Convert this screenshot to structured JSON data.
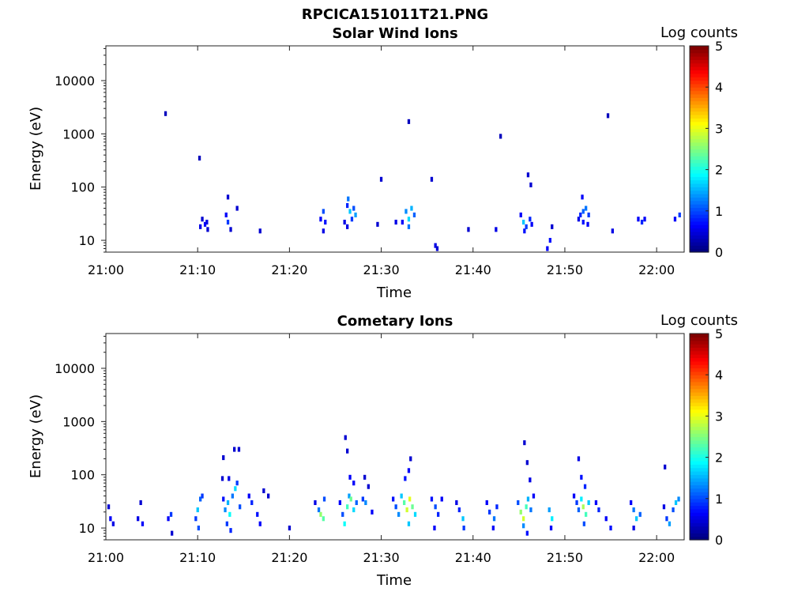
{
  "figure_title": "RPCICA151011T21.PNG",
  "chart_data": [
    {
      "type": "heatmap",
      "title": "Solar Wind Ions",
      "xlabel": "Time",
      "ylabel": "Energy (eV)",
      "x_tick_labels": [
        "21:00",
        "21:10",
        "21:20",
        "21:30",
        "21:40",
        "21:50",
        "22:00"
      ],
      "x_range_minutes": [
        0,
        63
      ],
      "y_scale": "log",
      "y_range": [
        6,
        45000
      ],
      "y_ticks": [
        10,
        100,
        1000,
        10000
      ],
      "y_tick_labels": [
        "10",
        "100",
        "1000",
        "10000"
      ],
      "colorbar": {
        "label": "Log counts",
        "range": [
          0,
          5
        ],
        "ticks": [
          "0",
          "1",
          "2",
          "3",
          "4",
          "5"
        ]
      },
      "cells": [
        [
          6.5,
          2400,
          0.3
        ],
        [
          10.2,
          350,
          0.3
        ],
        [
          13.3,
          65,
          0.4
        ],
        [
          14.3,
          40,
          0.4
        ],
        [
          33.0,
          1700,
          0.3
        ],
        [
          43.0,
          900,
          0.3
        ],
        [
          30.0,
          140,
          0.4
        ],
        [
          35.5,
          140,
          0.4
        ],
        [
          46.0,
          170,
          0.4
        ],
        [
          46.3,
          110,
          0.4
        ],
        [
          54.7,
          2200,
          0.3
        ],
        [
          51.9,
          65,
          0.6
        ],
        [
          10.5,
          25,
          0.4
        ],
        [
          10.8,
          20,
          0.6
        ],
        [
          11.0,
          22,
          0.5
        ],
        [
          10.3,
          18,
          0.5
        ],
        [
          11.1,
          16,
          0.4
        ],
        [
          13.1,
          30,
          0.6
        ],
        [
          13.3,
          22,
          0.9
        ],
        [
          13.6,
          16,
          0.4
        ],
        [
          16.8,
          15,
          0.4
        ],
        [
          23.4,
          25,
          0.6
        ],
        [
          23.7,
          35,
          1.0
        ],
        [
          23.9,
          22,
          0.7
        ],
        [
          23.7,
          15,
          0.5
        ],
        [
          26.0,
          22,
          0.5
        ],
        [
          26.3,
          45,
          0.8
        ],
        [
          26.4,
          60,
          1.2
        ],
        [
          26.6,
          35,
          1.6
        ],
        [
          26.8,
          25,
          0.9
        ],
        [
          27.0,
          40,
          1.0
        ],
        [
          27.2,
          30,
          1.4
        ],
        [
          26.3,
          18,
          0.5
        ],
        [
          29.6,
          20,
          0.4
        ],
        [
          31.6,
          22,
          0.5
        ],
        [
          32.3,
          22,
          0.6
        ],
        [
          32.7,
          35,
          1.3
        ],
        [
          33.0,
          25,
          1.7
        ],
        [
          33.3,
          40,
          1.5
        ],
        [
          33.6,
          30,
          1.1
        ],
        [
          33.0,
          18,
          1.2
        ],
        [
          35.9,
          8,
          0.5
        ],
        [
          36.1,
          7,
          0.4
        ],
        [
          39.5,
          16,
          0.4
        ],
        [
          42.5,
          16,
          0.5
        ],
        [
          45.2,
          30,
          0.6
        ],
        [
          45.5,
          22,
          1.6
        ],
        [
          45.8,
          18,
          0.9
        ],
        [
          46.2,
          25,
          0.8
        ],
        [
          46.4,
          20,
          0.6
        ],
        [
          45.6,
          15,
          0.7
        ],
        [
          48.1,
          7,
          0.6
        ],
        [
          48.4,
          10,
          0.7
        ],
        [
          48.6,
          18,
          0.4
        ],
        [
          51.5,
          25,
          0.5
        ],
        [
          51.7,
          30,
          0.8
        ],
        [
          52.0,
          35,
          1.1
        ],
        [
          52.3,
          40,
          1.2
        ],
        [
          52.6,
          30,
          0.9
        ],
        [
          52.0,
          22,
          0.7
        ],
        [
          52.5,
          20,
          0.6
        ],
        [
          55.2,
          15,
          0.5
        ],
        [
          58.0,
          25,
          0.6
        ],
        [
          58.4,
          22,
          0.8
        ],
        [
          58.7,
          25,
          0.6
        ],
        [
          62.0,
          25,
          0.6
        ],
        [
          62.5,
          30,
          0.9
        ]
      ]
    },
    {
      "type": "heatmap",
      "title": "Cometary Ions",
      "xlabel": "Time",
      "ylabel": "Energy (eV)",
      "x_tick_labels": [
        "21:00",
        "21:10",
        "21:20",
        "21:30",
        "21:40",
        "21:50",
        "22:00"
      ],
      "x_range_minutes": [
        0,
        63
      ],
      "y_scale": "log",
      "y_range": [
        6,
        45000
      ],
      "y_ticks": [
        10,
        100,
        1000,
        10000
      ],
      "y_tick_labels": [
        "10",
        "100",
        "1000",
        "10000"
      ],
      "colorbar": {
        "label": "Log counts",
        "range": [
          0,
          5
        ],
        "ticks": [
          "0",
          "1",
          "2",
          "3",
          "4",
          "5"
        ]
      },
      "cells": [
        [
          0.3,
          25,
          0.4
        ],
        [
          0.5,
          15,
          0.6
        ],
        [
          0.8,
          12,
          0.5
        ],
        [
          3.8,
          30,
          0.4
        ],
        [
          3.5,
          15,
          0.5
        ],
        [
          4.0,
          12,
          0.6
        ],
        [
          6.8,
          15,
          0.6
        ],
        [
          7.1,
          18,
          0.9
        ],
        [
          7.2,
          8,
          0.4
        ],
        [
          9.8,
          15,
          0.9
        ],
        [
          10.0,
          22,
          1.6
        ],
        [
          10.3,
          35,
          1.1
        ],
        [
          10.5,
          40,
          0.9
        ],
        [
          10.1,
          10,
          1.0
        ],
        [
          12.8,
          35,
          0.7
        ],
        [
          13.0,
          22,
          1.3
        ],
        [
          13.3,
          30,
          1.5
        ],
        [
          13.5,
          18,
          1.9
        ],
        [
          13.8,
          40,
          1.2
        ],
        [
          14.1,
          55,
          1.7
        ],
        [
          14.3,
          70,
          0.9
        ],
        [
          14.6,
          25,
          1.0
        ],
        [
          13.2,
          12,
          0.9
        ],
        [
          13.6,
          9,
          0.8
        ],
        [
          12.7,
          85,
          0.4
        ],
        [
          13.4,
          85,
          0.5
        ],
        [
          14.0,
          300,
          0.4
        ],
        [
          14.5,
          300,
          0.4
        ],
        [
          12.8,
          210,
          0.4
        ],
        [
          15.6,
          40,
          0.6
        ],
        [
          15.9,
          30,
          0.8
        ],
        [
          16.5,
          18,
          0.7
        ],
        [
          16.8,
          12,
          0.6
        ],
        [
          17.2,
          50,
          0.4
        ],
        [
          17.7,
          40,
          0.4
        ],
        [
          20.0,
          10,
          0.4
        ],
        [
          22.8,
          30,
          0.5
        ],
        [
          23.2,
          22,
          1.2
        ],
        [
          23.4,
          18,
          2.6
        ],
        [
          23.7,
          15,
          2.3
        ],
        [
          23.8,
          35,
          1.0
        ],
        [
          25.5,
          30,
          0.6
        ],
        [
          25.8,
          18,
          1.0
        ],
        [
          26.0,
          12,
          1.9
        ],
        [
          26.3,
          25,
          2.2
        ],
        [
          26.5,
          40,
          1.4
        ],
        [
          26.7,
          35,
          2.4
        ],
        [
          27.0,
          22,
          1.7
        ],
        [
          27.3,
          30,
          1.1
        ],
        [
          26.1,
          500,
          0.4
        ],
        [
          26.3,
          280,
          0.4
        ],
        [
          26.6,
          90,
          0.6
        ],
        [
          27.0,
          70,
          0.6
        ],
        [
          28.2,
          90,
          0.4
        ],
        [
          28.6,
          60,
          0.4
        ],
        [
          29.0,
          20,
          0.6
        ],
        [
          28.0,
          35,
          0.9
        ],
        [
          28.3,
          30,
          1.3
        ],
        [
          31.3,
          35,
          0.7
        ],
        [
          31.6,
          25,
          1.0
        ],
        [
          31.9,
          18,
          1.3
        ],
        [
          32.2,
          40,
          1.6
        ],
        [
          32.5,
          30,
          2.3
        ],
        [
          32.8,
          22,
          2.9
        ],
        [
          33.1,
          35,
          3.0
        ],
        [
          33.4,
          25,
          2.4
        ],
        [
          33.7,
          18,
          1.7
        ],
        [
          33.0,
          12,
          1.6
        ],
        [
          32.6,
          85,
          0.7
        ],
        [
          33.0,
          120,
          0.6
        ],
        [
          33.2,
          200,
          0.4
        ],
        [
          35.5,
          35,
          0.7
        ],
        [
          35.9,
          25,
          1.0
        ],
        [
          36.2,
          18,
          0.8
        ],
        [
          36.6,
          35,
          0.6
        ],
        [
          35.8,
          10,
          0.6
        ],
        [
          38.2,
          30,
          0.5
        ],
        [
          38.5,
          22,
          0.8
        ],
        [
          38.9,
          15,
          1.6
        ],
        [
          39.0,
          10,
          0.9
        ],
        [
          41.5,
          30,
          0.6
        ],
        [
          41.8,
          20,
          0.9
        ],
        [
          42.3,
          15,
          1.2
        ],
        [
          42.6,
          25,
          0.8
        ],
        [
          42.2,
          10,
          0.6
        ],
        [
          44.9,
          30,
          1.0
        ],
        [
          45.2,
          20,
          2.6
        ],
        [
          45.5,
          15,
          2.9
        ],
        [
          45.8,
          25,
          2.2
        ],
        [
          46.0,
          35,
          1.5
        ],
        [
          46.3,
          22,
          1.2
        ],
        [
          45.5,
          11,
          1.3
        ],
        [
          45.9,
          8,
          0.7
        ],
        [
          45.6,
          400,
          0.4
        ],
        [
          45.9,
          170,
          0.4
        ],
        [
          46.2,
          80,
          0.5
        ],
        [
          46.6,
          40,
          0.6
        ],
        [
          48.3,
          22,
          1.4
        ],
        [
          48.6,
          15,
          1.8
        ],
        [
          48.5,
          10,
          0.6
        ],
        [
          51.0,
          40,
          0.6
        ],
        [
          51.3,
          30,
          0.9
        ],
        [
          51.5,
          22,
          1.1
        ],
        [
          51.8,
          35,
          1.8
        ],
        [
          52.0,
          25,
          2.7
        ],
        [
          52.3,
          18,
          2.2
        ],
        [
          52.6,
          30,
          1.6
        ],
        [
          52.1,
          12,
          1.0
        ],
        [
          51.5,
          200,
          0.5
        ],
        [
          51.8,
          90,
          0.7
        ],
        [
          52.2,
          60,
          0.8
        ],
        [
          53.4,
          30,
          0.6
        ],
        [
          53.7,
          22,
          0.8
        ],
        [
          54.5,
          15,
          0.6
        ],
        [
          55.0,
          10,
          0.7
        ],
        [
          57.2,
          30,
          0.6
        ],
        [
          57.5,
          22,
          1.2
        ],
        [
          57.8,
          15,
          1.6
        ],
        [
          58.2,
          18,
          1.1
        ],
        [
          57.5,
          10,
          0.5
        ],
        [
          60.8,
          25,
          0.5
        ],
        [
          61.1,
          15,
          0.9
        ],
        [
          61.4,
          12,
          1.4
        ],
        [
          61.8,
          22,
          1.0
        ],
        [
          62.1,
          30,
          1.6
        ],
        [
          62.4,
          35,
          1.3
        ],
        [
          60.9,
          140,
          0.4
        ]
      ]
    }
  ]
}
